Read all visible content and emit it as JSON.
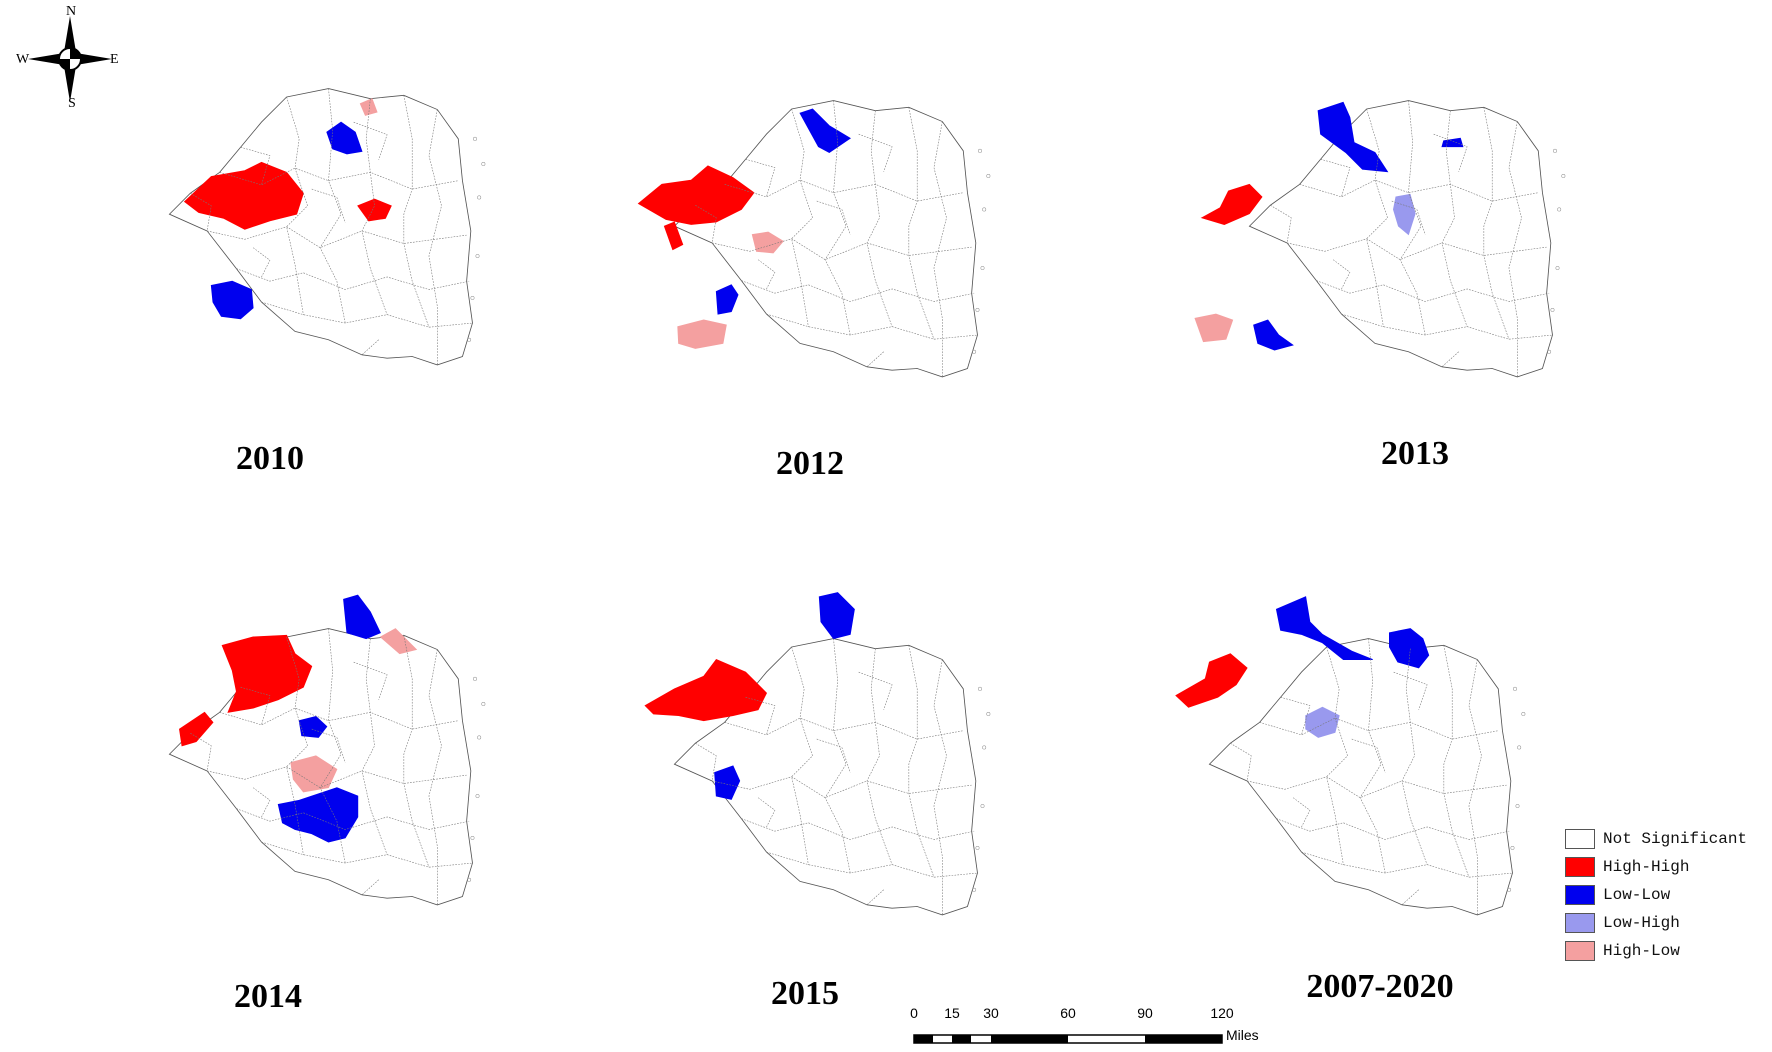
{
  "compass": {
    "north": "N",
    "south": "S",
    "east": "E",
    "west": "W"
  },
  "panels": [
    {
      "year": "2010"
    },
    {
      "year": "2012"
    },
    {
      "year": "2013"
    },
    {
      "year": "2014"
    },
    {
      "year": "2015"
    },
    {
      "year": "2007-2020"
    }
  ],
  "legend": {
    "items": [
      {
        "label": "Not Significant",
        "color": "#ffffff"
      },
      {
        "label": "High-High",
        "color": "#ff0000"
      },
      {
        "label": "Low-Low",
        "color": "#0000ee"
      },
      {
        "label": "Low-High",
        "color": "#9999ee"
      },
      {
        "label": "High-Low",
        "color": "#f4a0a0"
      }
    ]
  },
  "scale_bar": {
    "ticks": [
      "0",
      "15",
      "30",
      "60",
      "90",
      "120"
    ],
    "unit": "Miles"
  }
}
